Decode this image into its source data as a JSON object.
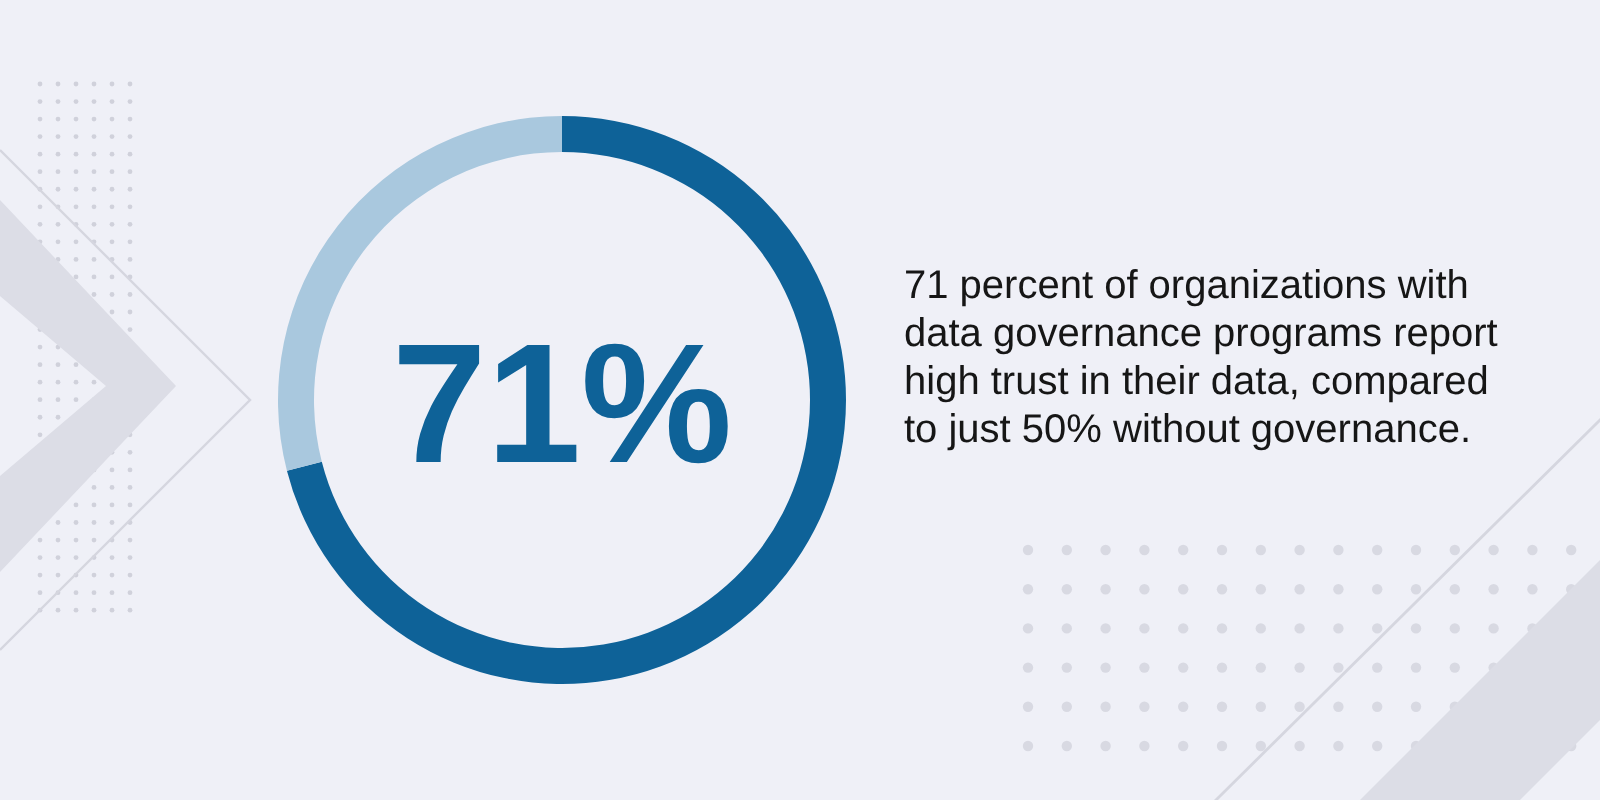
{
  "chart_data": {
    "type": "donut",
    "categories": [
      null,
      null
    ],
    "values": [
      71,
      29
    ],
    "colors": [
      "#0e6298",
      "#a9c8de"
    ],
    "value_labels": [
      "71%",
      null
    ],
    "annotations": [
      "71 percent of organizations with data governance programs report high trust in their data, compared to just 50% without governance."
    ]
  }
}
